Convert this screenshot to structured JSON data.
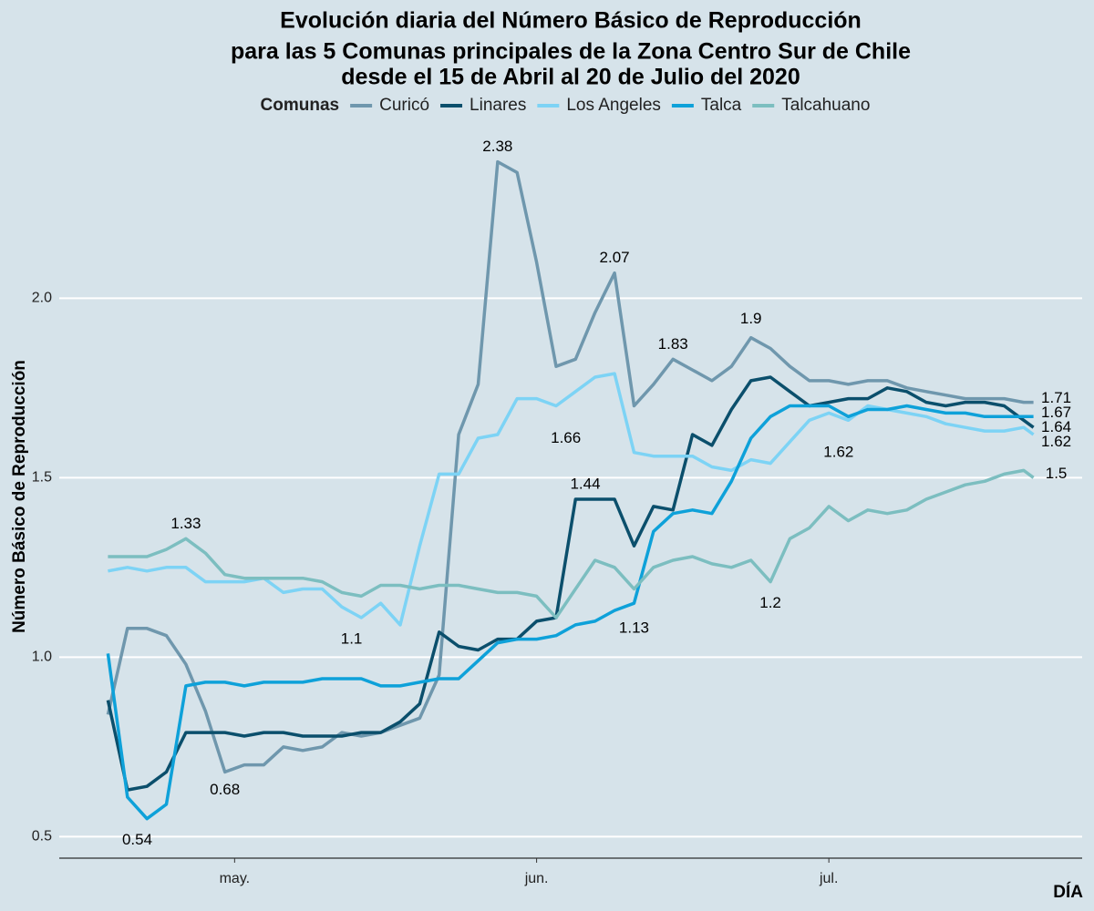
{
  "chart_data": {
    "type": "line",
    "title": [
      "Evolución diaria del Número Básico de Reproducción",
      "para las 5 Comunas principales de la Zona Centro Sur de Chile",
      "desde el 15 de Abril al 20 de Julio del 2020"
    ],
    "legend_title": "Comunas",
    "legend_position": "top",
    "x_label": "DÍA",
    "y_label": "Número Básico de Reproducción",
    "xlim": [
      -18,
      87
    ],
    "xticks": [
      {
        "value": 0,
        "label": "may."
      },
      {
        "value": 31,
        "label": "jun."
      },
      {
        "value": 61,
        "label": "jul."
      }
    ],
    "ylim": [
      0.44,
      2.45
    ],
    "yticks": [
      0.5,
      {
        "value": 1,
        "label": "1.0"
      },
      1.5,
      {
        "value": 2,
        "label": "2.0"
      }
    ],
    "grid": true,
    "x": [
      -13,
      -11,
      -9,
      -7,
      -5,
      -3,
      -1,
      1,
      3,
      5,
      7,
      9,
      11,
      13,
      15,
      17,
      19,
      21,
      23,
      25,
      27,
      29,
      31,
      33,
      35,
      37,
      39,
      41,
      43,
      45,
      47,
      49,
      51,
      53,
      55,
      57,
      59,
      61,
      63,
      65,
      67,
      69,
      71,
      73,
      75,
      77,
      79,
      81,
      82
    ],
    "series": [
      {
        "name": "Curicó",
        "color": "#6f97ad",
        "values": [
          0.84,
          1.08,
          1.08,
          1.06,
          0.98,
          0.85,
          0.68,
          0.7,
          0.7,
          0.75,
          0.74,
          0.75,
          0.79,
          0.78,
          0.79,
          0.81,
          0.83,
          0.95,
          1.62,
          1.76,
          2.38,
          2.35,
          2.1,
          1.81,
          1.83,
          1.96,
          2.07,
          1.7,
          1.76,
          1.83,
          1.8,
          1.77,
          1.81,
          1.89,
          1.86,
          1.81,
          1.77,
          1.77,
          1.76,
          1.77,
          1.77,
          1.75,
          1.74,
          1.73,
          1.72,
          1.72,
          1.72,
          1.71,
          1.71
        ]
      },
      {
        "name": "Linares",
        "color": "#0b4f6c",
        "values": [
          0.88,
          0.63,
          0.64,
          0.68,
          0.79,
          0.79,
          0.79,
          0.78,
          0.79,
          0.79,
          0.78,
          0.78,
          0.78,
          0.79,
          0.79,
          0.82,
          0.87,
          1.07,
          1.03,
          1.02,
          1.05,
          1.05,
          1.1,
          1.11,
          1.44,
          1.44,
          1.44,
          1.31,
          1.42,
          1.41,
          1.62,
          1.59,
          1.69,
          1.77,
          1.78,
          1.74,
          1.7,
          1.71,
          1.72,
          1.72,
          1.75,
          1.74,
          1.71,
          1.7,
          1.71,
          1.71,
          1.7,
          1.66,
          1.64
        ]
      },
      {
        "name": "Los Angeles",
        "color": "#7dd3f5",
        "values": [
          1.24,
          1.25,
          1.24,
          1.25,
          1.25,
          1.21,
          1.21,
          1.21,
          1.22,
          1.18,
          1.19,
          1.19,
          1.14,
          1.11,
          1.15,
          1.09,
          1.31,
          1.51,
          1.51,
          1.61,
          1.62,
          1.72,
          1.72,
          1.7,
          1.74,
          1.78,
          1.79,
          1.57,
          1.56,
          1.56,
          1.56,
          1.53,
          1.52,
          1.55,
          1.54,
          1.6,
          1.66,
          1.68,
          1.66,
          1.7,
          1.69,
          1.68,
          1.67,
          1.65,
          1.64,
          1.63,
          1.63,
          1.64,
          1.62
        ]
      },
      {
        "name": "Talca",
        "color": "#0ea1d9",
        "values": [
          1.01,
          0.61,
          0.55,
          0.59,
          0.92,
          0.93,
          0.93,
          0.92,
          0.93,
          0.93,
          0.93,
          0.94,
          0.94,
          0.94,
          0.92,
          0.92,
          0.93,
          0.94,
          0.94,
          0.99,
          1.04,
          1.05,
          1.05,
          1.06,
          1.09,
          1.1,
          1.13,
          1.15,
          1.35,
          1.4,
          1.41,
          1.4,
          1.49,
          1.61,
          1.67,
          1.7,
          1.7,
          1.7,
          1.67,
          1.69,
          1.69,
          1.7,
          1.69,
          1.68,
          1.68,
          1.67,
          1.67,
          1.67,
          1.67
        ]
      },
      {
        "name": "Talcahuano",
        "color": "#7cbec0",
        "values": [
          1.28,
          1.28,
          1.28,
          1.3,
          1.33,
          1.29,
          1.23,
          1.22,
          1.22,
          1.22,
          1.22,
          1.21,
          1.18,
          1.17,
          1.2,
          1.2,
          1.19,
          1.2,
          1.2,
          1.19,
          1.18,
          1.18,
          1.17,
          1.11,
          1.19,
          1.27,
          1.25,
          1.19,
          1.25,
          1.27,
          1.28,
          1.26,
          1.25,
          1.27,
          1.21,
          1.33,
          1.36,
          1.42,
          1.38,
          1.41,
          1.4,
          1.41,
          1.44,
          1.46,
          1.48,
          1.49,
          1.51,
          1.52,
          1.5
        ]
      }
    ],
    "annotation_color": "#ff0000",
    "annotations": [
      {
        "x": 27,
        "value": 2.38
      },
      {
        "x": 39,
        "value": 2.07
      },
      {
        "x": 45,
        "value": 1.83
      },
      {
        "x": 53,
        "value": 1.9
      },
      {
        "x": 34,
        "value": 1.66
      },
      {
        "x": 36,
        "value": 1.44
      },
      {
        "x": -5,
        "value": 1.33
      },
      {
        "x": 12,
        "value": 1.1
      },
      {
        "x": 41,
        "value": 1.13
      },
      {
        "x": 55,
        "value": 1.2
      },
      {
        "x": -1,
        "value": 0.68
      },
      {
        "x": -10,
        "value": 0.54
      },
      {
        "x": 62,
        "value": 1.62
      },
      {
        "x": 82,
        "value": 1.71
      },
      {
        "x": 82,
        "value": 1.67
      },
      {
        "x": 82,
        "value": 1.64
      },
      {
        "x": 82,
        "value": 1.62
      },
      {
        "x": 82,
        "value": 1.5
      }
    ]
  }
}
